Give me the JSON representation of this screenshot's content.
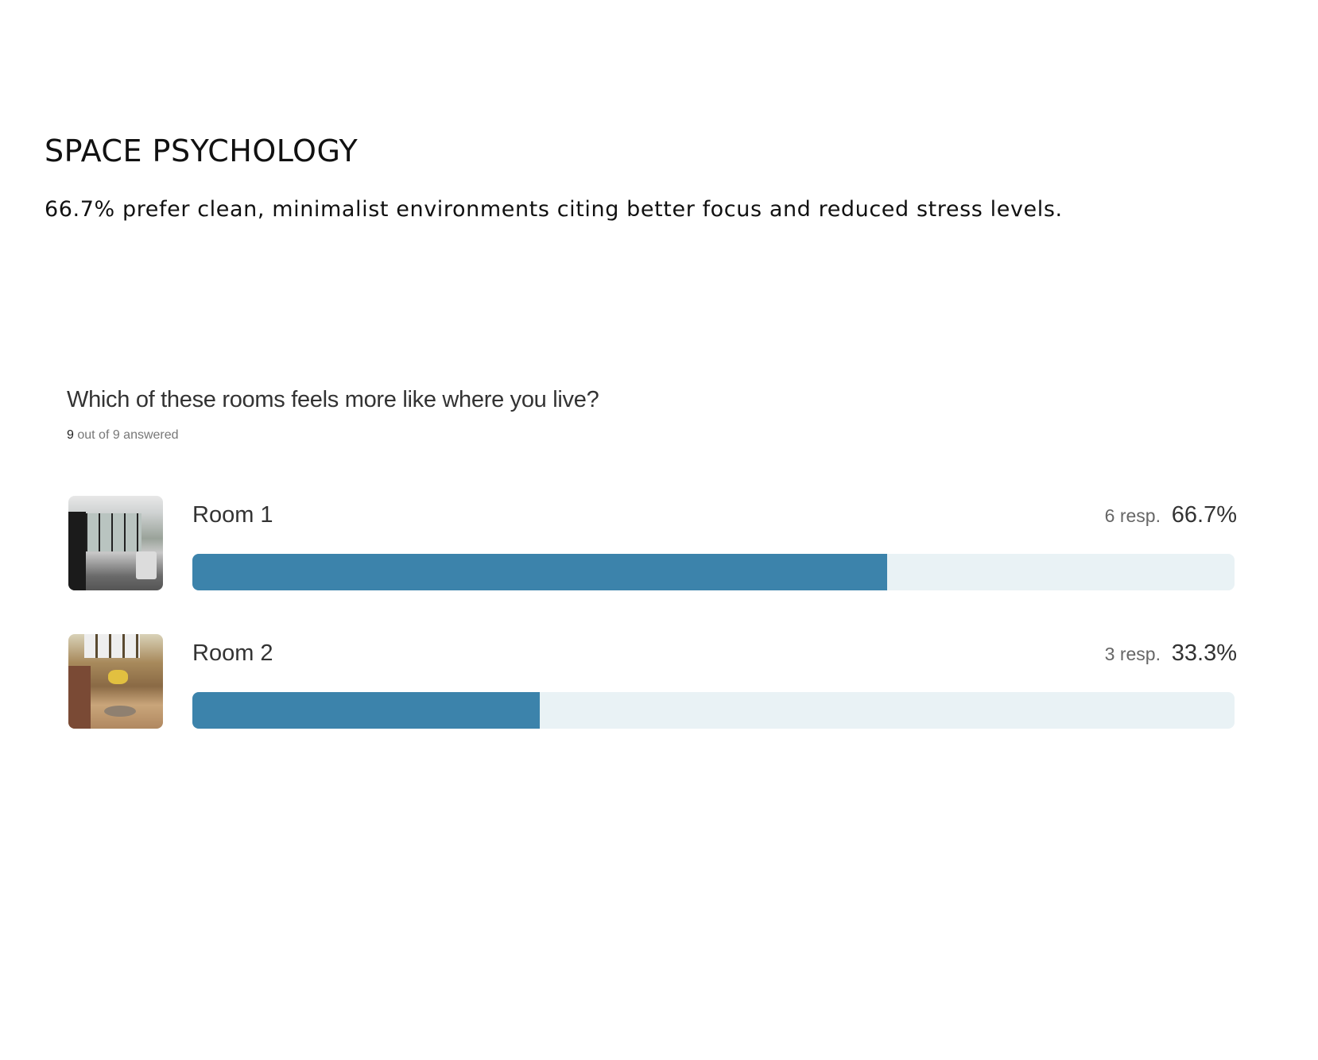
{
  "section": {
    "title": "SPACE PSYCHOLOGY",
    "summary": "66.7% prefer clean, minimalist environments citing better focus and reduced stress levels."
  },
  "poll": {
    "question": "Which of these rooms feels more like where you live?",
    "answered_count": "9",
    "answered_suffix": "out of 9 answered",
    "bar_color": "#3c83ab",
    "track_color": "#e9f2f5",
    "options": [
      {
        "label": "Room 1",
        "responses": "6 resp.",
        "percent": "66.7%",
        "fraction": 0.667,
        "image": "minimalist-room-photo"
      },
      {
        "label": "Room 2",
        "responses": "3 resp.",
        "percent": "33.3%",
        "fraction": 0.333,
        "image": "cluttered-room-photo"
      }
    ]
  }
}
